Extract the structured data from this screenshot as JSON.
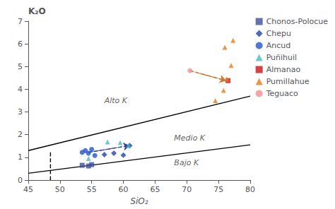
{
  "chart_data": {
    "type": "scatter",
    "xlabel": "SiO₂",
    "ylabel": "K₂O",
    "xlim": [
      45,
      80
    ],
    "ylim": [
      0,
      7
    ],
    "xticks": [
      45,
      50,
      55,
      60,
      65,
      70,
      75,
      80
    ],
    "yticks": [
      0,
      1,
      2,
      3,
      4,
      5,
      6,
      7
    ],
    "grid": false,
    "legend": "right",
    "annotations": [
      {
        "text": "Alto K",
        "x": 57,
        "y": 3.5
      },
      {
        "text": "Medio K",
        "x": 68,
        "y": 1.85
      },
      {
        "text": "Bajo K",
        "x": 68,
        "y": 0.75
      }
    ],
    "series": [
      {
        "type": "line",
        "color": "#000000",
        "line_style": "solid",
        "x": [
          45,
          80
        ],
        "values": [
          0.3,
          1.55
        ]
      },
      {
        "type": "line",
        "color": "#000000",
        "line_style": "solid",
        "x": [
          45,
          80
        ],
        "values": [
          1.3,
          3.7
        ]
      },
      {
        "type": "line",
        "color": "#000000",
        "line_style": "dashed",
        "x": [
          48.5,
          48.5
        ],
        "values": [
          0,
          1.3
        ]
      },
      {
        "type": "line",
        "color": "#cc7733",
        "line_style": "dashed",
        "marker": "arrow",
        "x": [
          70.5,
          76.2
        ],
        "values": [
          4.82,
          4.38
        ]
      },
      {
        "type": "line",
        "color": "#334499",
        "line_style": "dashed",
        "marker": "arrow",
        "x": [
          54.5,
          61.0
        ],
        "values": [
          1.22,
          1.52
        ]
      },
      {
        "name": "Chonos-Polocue",
        "type": "scatter",
        "color": "#3d4f9f",
        "marker": "square",
        "x": [
          53.5,
          54.5,
          55.0
        ],
        "values": [
          0.65,
          0.62,
          0.68
        ]
      },
      {
        "name": "Chepu",
        "type": "scatter",
        "color": "#2244aa",
        "marker": "diamond",
        "x": [
          57.0,
          58.5,
          60.0,
          61.0
        ],
        "values": [
          1.12,
          1.18,
          1.1,
          1.52
        ]
      },
      {
        "name": "Ancud",
        "type": "scatter",
        "color": "#2255cc",
        "marker": "circle",
        "x": [
          53.5,
          54.0,
          54.5,
          55.0,
          55.5
        ],
        "values": [
          1.22,
          1.3,
          1.18,
          1.35,
          1.08
        ]
      },
      {
        "name": "Puñihuil",
        "type": "scatter",
        "color": "#4bbcbc",
        "marker": "triangle",
        "x": [
          54.5,
          57.5,
          59.5,
          60.8
        ],
        "values": [
          0.95,
          1.68,
          1.65,
          1.52
        ]
      },
      {
        "name": "Almanao",
        "type": "scatter",
        "color": "#cc1111",
        "marker": "square",
        "x": [
          76.5
        ],
        "values": [
          4.38
        ]
      },
      {
        "name": "Pumillahue",
        "type": "scatter",
        "color": "#e87c1e",
        "marker": "triangle",
        "x": [
          74.5,
          75.8,
          76.0,
          76.3,
          77.0,
          77.3
        ],
        "values": [
          3.5,
          3.95,
          5.85,
          4.45,
          5.05,
          6.15
        ]
      },
      {
        "name": "Teguaco",
        "type": "scatter",
        "color": "#f09090",
        "marker": "circle",
        "x": [
          70.5
        ],
        "values": [
          4.82
        ]
      }
    ]
  }
}
